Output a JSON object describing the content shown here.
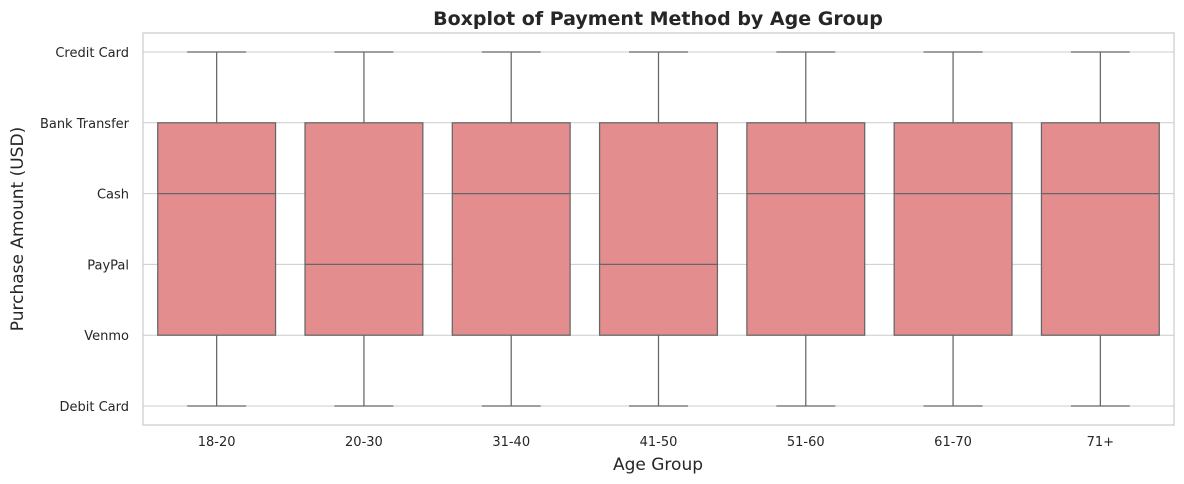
{
  "chart_data": {
    "type": "boxplot",
    "title": "Boxplot of Payment Method by Age Group",
    "xlabel": "Age Group",
    "ylabel": "Purchase Amount (USD)",
    "y_categories": [
      "Credit Card",
      "Bank Transfer",
      "Cash",
      "PayPal",
      "Venmo",
      "Debit Card"
    ],
    "categories": [
      "18-20",
      "20-30",
      "31-40",
      "41-50",
      "51-60",
      "61-70",
      "71+"
    ],
    "boxes": [
      {
        "category": "18-20",
        "whisker_high": "Credit Card",
        "q3": "Bank Transfer",
        "median": "Cash",
        "q1": "Venmo",
        "whisker_low": "Debit Card"
      },
      {
        "category": "20-30",
        "whisker_high": "Credit Card",
        "q3": "Bank Transfer",
        "median": "PayPal",
        "q1": "Venmo",
        "whisker_low": "Debit Card"
      },
      {
        "category": "31-40",
        "whisker_high": "Credit Card",
        "q3": "Bank Transfer",
        "median": "Cash",
        "q1": "Venmo",
        "whisker_low": "Debit Card"
      },
      {
        "category": "41-50",
        "whisker_high": "Credit Card",
        "q3": "Bank Transfer",
        "median": "PayPal",
        "q1": "Venmo",
        "whisker_low": "Debit Card"
      },
      {
        "category": "51-60",
        "whisker_high": "Credit Card",
        "q3": "Bank Transfer",
        "median": "Cash",
        "q1": "Venmo",
        "whisker_low": "Debit Card"
      },
      {
        "category": "61-70",
        "whisker_high": "Credit Card",
        "q3": "Bank Transfer",
        "median": "Cash",
        "q1": "Venmo",
        "whisker_low": "Debit Card"
      },
      {
        "category": "71+",
        "whisker_high": "Credit Card",
        "q3": "Bank Transfer",
        "median": "Cash",
        "q1": "Venmo",
        "whisker_low": "Debit Card"
      }
    ],
    "grid": true,
    "colors": {
      "box_fill": "#e38d8e",
      "box_edge": "#666666",
      "grid": "#cccccc",
      "text": "#262626"
    }
  }
}
